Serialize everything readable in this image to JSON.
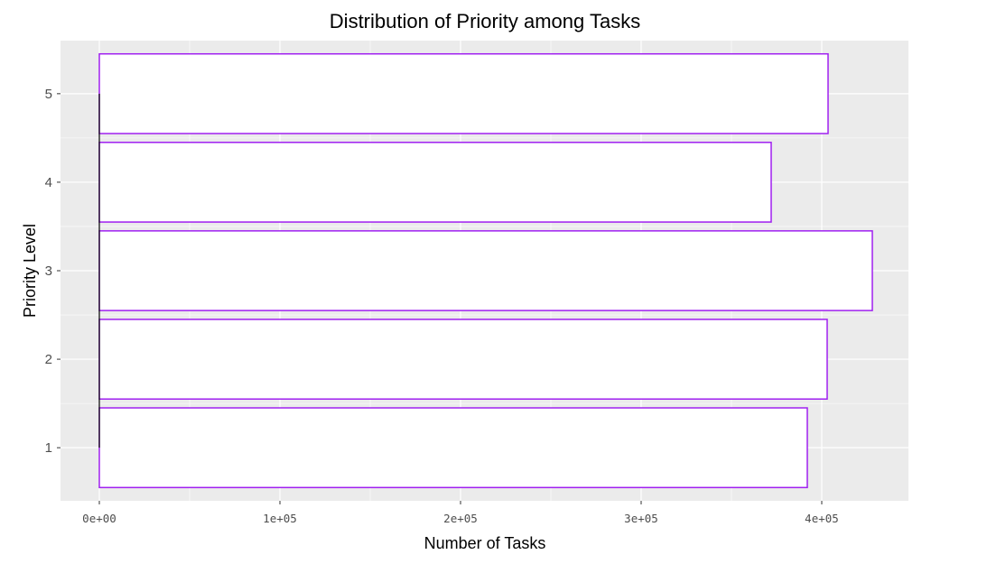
{
  "chart_data": {
    "type": "bar",
    "orientation": "horizontal",
    "title": "Distribution of Priority among Tasks",
    "xlabel": "Number of Tasks",
    "ylabel": "Priority Level",
    "categories": [
      "1",
      "2",
      "3",
      "4",
      "5"
    ],
    "values": [
      392000,
      403000,
      428000,
      372000,
      403500
    ],
    "xlim": [
      -21500,
      448000
    ],
    "ylim": [
      0.4,
      5.6
    ],
    "x_ticks": [
      0,
      100000,
      200000,
      300000,
      400000
    ],
    "x_tick_labels": [
      "0e+00",
      "1e+05",
      "2e+05",
      "3e+05",
      "4e+05"
    ],
    "y_ticks": [
      1,
      2,
      3,
      4,
      5
    ],
    "grid": true,
    "colors": {
      "panel_background": "#ebebeb",
      "grid_line": "#ffffff",
      "bar_fill": "#ffffff",
      "bar_outline": "#a020f0",
      "tick": "#333333",
      "zero_line": "#000000"
    }
  }
}
